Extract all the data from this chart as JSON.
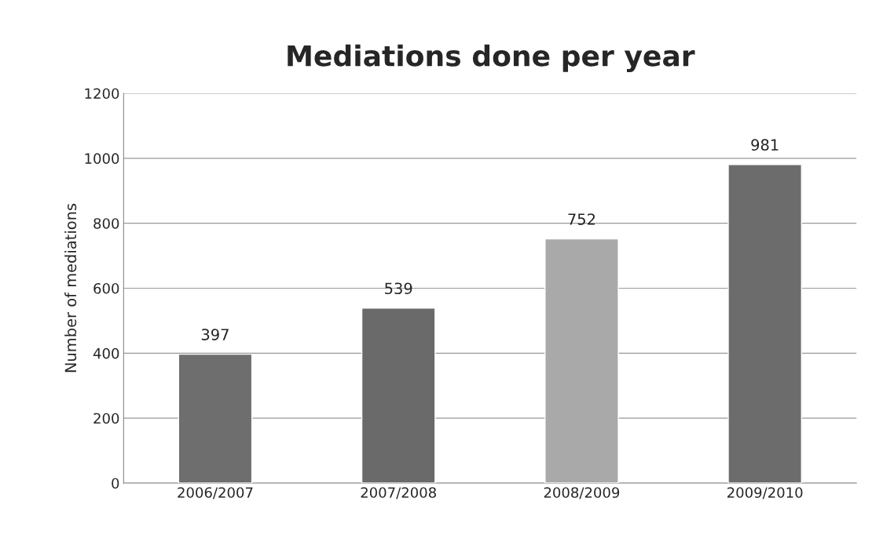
{
  "chart_data": {
    "type": "bar",
    "title": "Mediations done per year",
    "ylabel": "Number of mediations",
    "categories": [
      "2006/2007",
      "2007/2008",
      "2008/2009",
      "2009/2010"
    ],
    "values": [
      397,
      539,
      752,
      981
    ],
    "colors": [
      "#6e6e6e",
      "#6a6a6a",
      "#a9a9a9",
      "#6c6c6c"
    ],
    "ylim": [
      0,
      1200
    ],
    "yticks": [
      0,
      200,
      400,
      600,
      800,
      1000,
      1200
    ],
    "grid": "y",
    "data_labels": true
  }
}
